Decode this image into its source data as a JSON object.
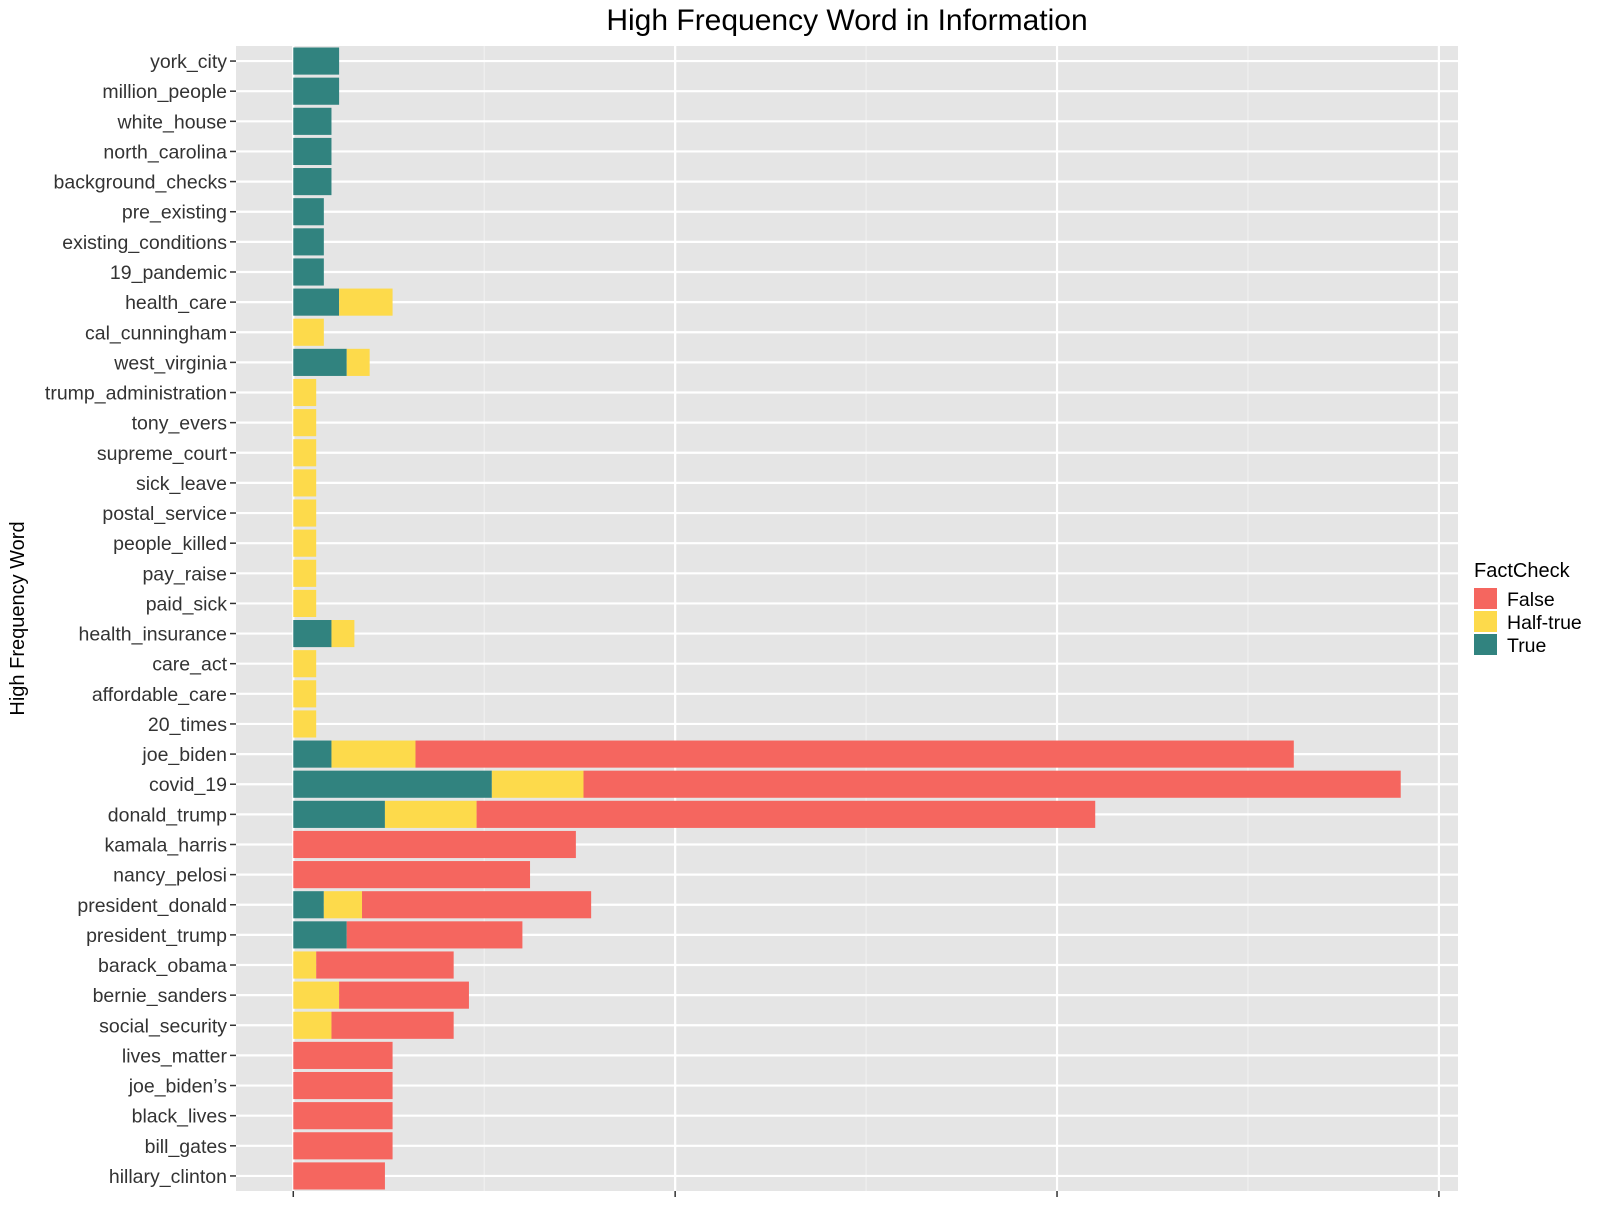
{
  "chart_data": {
    "type": "bar",
    "orientation": "horizontal",
    "stacked": true,
    "title": "High Frequency Word in Information",
    "ylabel": "High Frequency Word",
    "xlabel": "",
    "xlim": [
      -7.5,
      152.5
    ],
    "x_ticks": [
      0,
      50,
      100,
      150
    ],
    "grid": true,
    "legend_position": "right",
    "legend_title": "FactCheck",
    "categories": [
      "hillary_clinton",
      "bill_gates",
      "black_lives",
      "joe_biden’s",
      "lives_matter",
      "social_security",
      "bernie_sanders",
      "barack_obama",
      "president_trump",
      "president_donald",
      "nancy_pelosi",
      "kamala_harris",
      "donald_trump",
      "covid_19",
      "joe_biden",
      "20_times",
      "affordable_care",
      "care_act",
      "health_insurance",
      "paid_sick",
      "pay_raise",
      "people_killed",
      "postal_service",
      "sick_leave",
      "supreme_court",
      "tony_evers",
      "trump_administration",
      "west_virginia",
      "cal_cunningham",
      "health_care",
      "19_pandemic",
      "existing_conditions",
      "pre_existing",
      "background_checks",
      "north_carolina",
      "white_house",
      "million_people",
      "york_city"
    ],
    "series": [
      {
        "name": "True",
        "color": "#31837F",
        "values": [
          0,
          0,
          0,
          0,
          0,
          0,
          0,
          0,
          7,
          4,
          0,
          0,
          12,
          26,
          5,
          0,
          0,
          0,
          5,
          0,
          0,
          0,
          0,
          0,
          0,
          0,
          0,
          7,
          0,
          6,
          4,
          4,
          4,
          5,
          5,
          5,
          6,
          6
        ]
      },
      {
        "name": "Half-true",
        "color": "#FDDA4B",
        "values": [
          0,
          0,
          0,
          0,
          0,
          5,
          6,
          3,
          0,
          5,
          0,
          0,
          12,
          12,
          11,
          3,
          3,
          3,
          3,
          3,
          3,
          3,
          3,
          3,
          3,
          3,
          3,
          3,
          4,
          7,
          0,
          0,
          0,
          0,
          0,
          0,
          0,
          0
        ]
      },
      {
        "name": "False",
        "color": "#F5665F",
        "values": [
          12,
          13,
          13,
          13,
          13,
          16,
          17,
          18,
          23,
          30,
          31,
          37,
          81,
          107,
          115,
          0,
          0,
          0,
          0,
          0,
          0,
          0,
          0,
          0,
          0,
          0,
          0,
          0,
          0,
          0,
          0,
          0,
          0,
          0,
          0,
          0,
          0,
          0
        ]
      }
    ],
    "legend_order": [
      "False",
      "Half-true",
      "True"
    ]
  },
  "colors": {
    "panel": "#E5E5E5",
    "grid_major": "#FFFFFF",
    "grid_minor": "#F0F0F0",
    "text": "#000000",
    "tick_text": "#333333"
  }
}
